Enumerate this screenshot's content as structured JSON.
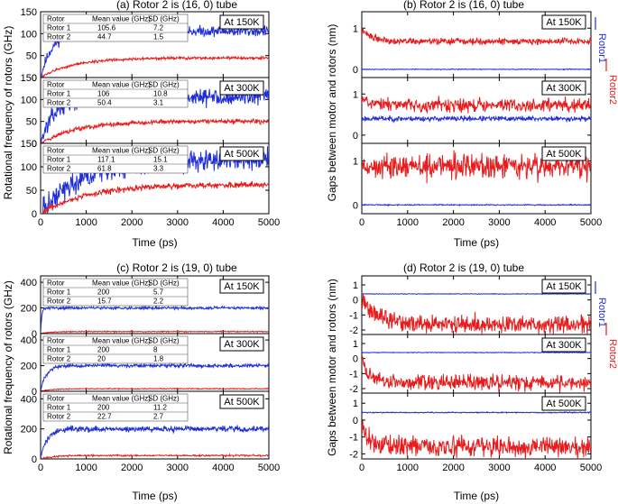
{
  "colors": {
    "rotor1": "#1f2fd8",
    "rotor2": "#e81c1c",
    "axis": "#000000"
  },
  "chart_data": [
    {
      "type": "line",
      "title": "(a) Rotor 2 is (16, 0) tube",
      "xlabel": "Time (ps)",
      "ylabel": "Rotational frequency of rotors (GHz)",
      "xlim": [
        0,
        5000
      ],
      "ylim": [
        0,
        150
      ],
      "xticks": [
        "0",
        "1000",
        "2000",
        "3000",
        "4000",
        "5000"
      ],
      "yticks": [
        "0",
        "50",
        "100",
        "150"
      ],
      "legend": [],
      "table_headers": [
        "Rotor",
        "Mean value (GHz)",
        "SD (GHz)"
      ],
      "subplots": [
        {
          "label": "At 150K",
          "table": [
            [
              "Rotor 1",
              "105.6",
              "7.2"
            ],
            [
              "Rotor 2",
              "44.7",
              "1.5"
            ]
          ],
          "series": [
            {
              "name": "Rotor 1",
              "start": 0,
              "plateau": 105.6,
              "tau": 250,
              "noise": 6,
              "seed": 11
            },
            {
              "name": "Rotor 2",
              "start": 0,
              "plateau": 44.7,
              "tau": 700,
              "noise": 1.5,
              "seed": 12
            }
          ]
        },
        {
          "label": "At 300K",
          "table": [
            [
              "Rotor 1",
              "106",
              "10.8"
            ],
            [
              "Rotor 2",
              "50.4",
              "3.1"
            ]
          ],
          "series": [
            {
              "name": "Rotor 1",
              "start": 0,
              "plateau": 106,
              "tau": 300,
              "noise": 9,
              "seed": 13
            },
            {
              "name": "Rotor 2",
              "start": 0,
              "plateau": 50.4,
              "tau": 800,
              "noise": 2.5,
              "seed": 14
            }
          ]
        },
        {
          "label": "At 500K",
          "table": [
            [
              "Rotor 1",
              "117.1",
              "15.1"
            ],
            [
              "Rotor 2",
              "61.8",
              "3.3"
            ]
          ],
          "series": [
            {
              "name": "Rotor 1",
              "start": 0,
              "plateau": 117.1,
              "tau": 900,
              "noise": 12,
              "seed": 15
            },
            {
              "name": "Rotor 2",
              "start": 0,
              "plateau": 61.8,
              "tau": 1000,
              "noise": 3,
              "seed": 16
            }
          ]
        }
      ]
    },
    {
      "type": "line",
      "title": "(b) Rotor 2 is (16, 0) tube",
      "xlabel": "Time (ps)",
      "ylabel": "Gaps between motor and rotors (nm)",
      "xlim": [
        0,
        5000
      ],
      "ylim": [
        -0.2,
        1.4
      ],
      "xticks": [
        "0",
        "1000",
        "2000",
        "3000",
        "4000",
        "5000"
      ],
      "yticks": [
        "0",
        "1"
      ],
      "legend": [
        "Rotor1",
        "Rotor2"
      ],
      "subplots": [
        {
          "label": "At 150K",
          "series": [
            {
              "name": "Rotor1",
              "start": 0,
              "plateau": 0,
              "tau": 10,
              "noise": 0.005,
              "seed": 21
            },
            {
              "name": "Rotor2",
              "start": 0.95,
              "plateau": 0.68,
              "tau": 250,
              "noise": 0.04,
              "seed": 22
            }
          ]
        },
        {
          "label": "At 300K",
          "series": [
            {
              "name": "Rotor1",
              "start": 0.4,
              "plateau": 0.4,
              "tau": 10,
              "noise": 0.03,
              "seed": 23
            },
            {
              "name": "Rotor2",
              "start": 0.85,
              "plateau": 0.72,
              "tau": 400,
              "noise": 0.08,
              "seed": 24
            }
          ]
        },
        {
          "label": "At 500K",
          "series": [
            {
              "name": "Rotor1",
              "start": 0,
              "plateau": 0,
              "tau": 10,
              "noise": 0.006,
              "seed": 25
            },
            {
              "name": "Rotor2",
              "start": 0.9,
              "plateau": 0.88,
              "tau": 100,
              "noise": 0.14,
              "seed": 26
            }
          ]
        }
      ]
    },
    {
      "type": "line",
      "title": "(c) Rotor 2 is (19, 0) tube",
      "xlabel": "Time (ps)",
      "ylabel": "Rotational frequency of rotors (GHz)",
      "xlim": [
        0,
        5000
      ],
      "ylim": [
        0,
        450
      ],
      "xticks": [
        "0",
        "1000",
        "2000",
        "3000",
        "4000",
        "5000"
      ],
      "yticks": [
        "0",
        "200",
        "400"
      ],
      "legend": [],
      "table_headers": [
        "Rotor",
        "Mean value (GHz)",
        "SD (GHz)"
      ],
      "subplots": [
        {
          "label": "At 150K",
          "table": [
            [
              "Rotor 1",
              "200",
              "5.7"
            ],
            [
              "Rotor 2",
              "15.7",
              "2.2"
            ]
          ],
          "series": [
            {
              "name": "Rotor 1",
              "start": 0,
              "plateau": 200,
              "tau": 25,
              "noise": 5,
              "seed": 31
            },
            {
              "name": "Rotor 2",
              "start": 0,
              "plateau": 15.7,
              "tau": 200,
              "noise": 2,
              "seed": 32
            }
          ]
        },
        {
          "label": "At 300K",
          "table": [
            [
              "Rotor 1",
              "200",
              "8"
            ],
            [
              "Rotor 2",
              "20",
              "1.8"
            ]
          ],
          "series": [
            {
              "name": "Rotor 1",
              "start": 0,
              "plateau": 200,
              "tau": 120,
              "noise": 7,
              "seed": 33
            },
            {
              "name": "Rotor 2",
              "start": 0,
              "plateau": 20,
              "tau": 250,
              "noise": 1.8,
              "seed": 34
            }
          ]
        },
        {
          "label": "At 500K",
          "table": [
            [
              "Rotor 1",
              "200",
              "11.2"
            ],
            [
              "Rotor 2",
              "22.7",
              "2.7"
            ]
          ],
          "series": [
            {
              "name": "Rotor 1",
              "start": 0,
              "plateau": 200,
              "tau": 150,
              "noise": 10,
              "seed": 35
            },
            {
              "name": "Rotor 2",
              "start": 0,
              "plateau": 22.7,
              "tau": 250,
              "noise": 2.7,
              "seed": 36
            }
          ]
        }
      ]
    },
    {
      "type": "line",
      "title": "(d) Rotor 2 is (19, 0) tube",
      "xlabel": "Time (ps)",
      "ylabel": "Gaps between motor and rotors (nm)",
      "xlim": [
        0,
        5000
      ],
      "ylim": [
        -2.3,
        1.6
      ],
      "xticks": [
        "0",
        "1000",
        "2000",
        "3000",
        "4000",
        "5000"
      ],
      "yticks": [
        "-2",
        "-1",
        "0",
        "1"
      ],
      "legend": [
        "Rotor1",
        "Rotor2"
      ],
      "subplots": [
        {
          "label": "At 150K",
          "series": [
            {
              "name": "Rotor1",
              "start": 0.4,
              "plateau": 0.4,
              "tau": 10,
              "noise": 0.01,
              "seed": 41
            },
            {
              "name": "Rotor2",
              "start": 0,
              "plateau": -1.65,
              "tau": 350,
              "noise": 0.3,
              "seed": 42
            }
          ]
        },
        {
          "label": "At 300K",
          "series": [
            {
              "name": "Rotor1",
              "start": 0.4,
              "plateau": 0.4,
              "tau": 10,
              "noise": 0.01,
              "seed": 43
            },
            {
              "name": "Rotor2",
              "start": 0,
              "plateau": -1.6,
              "tau": 150,
              "noise": 0.25,
              "seed": 44
            }
          ]
        },
        {
          "label": "At 500K",
          "series": [
            {
              "name": "Rotor1",
              "start": 0.45,
              "plateau": 0.45,
              "tau": 10,
              "noise": 0.015,
              "seed": 45
            },
            {
              "name": "Rotor2",
              "start": 0,
              "plateau": -1.6,
              "tau": 120,
              "noise": 0.3,
              "seed": 46
            }
          ]
        }
      ]
    }
  ]
}
